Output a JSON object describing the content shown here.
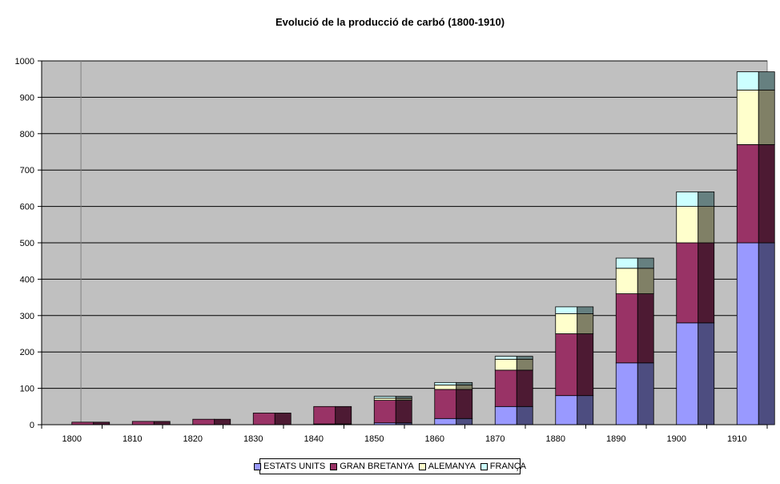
{
  "chart_data": {
    "type": "bar",
    "stacked": true,
    "style": "3d-stacked-columns",
    "title": "Evolució de la producció de carbó (1800-1910)",
    "xlabel": "",
    "ylabel": "",
    "ylim": [
      0,
      1000
    ],
    "yticks": [
      0,
      100,
      200,
      300,
      400,
      500,
      600,
      700,
      800,
      900,
      1000
    ],
    "grid": "horizontal",
    "legend_position": "bottom",
    "plot_background": "#c0c0c0",
    "categories": [
      "1800",
      "1810",
      "1820",
      "1830",
      "1840",
      "1850",
      "1860",
      "1870",
      "1880",
      "1890",
      "1900",
      "1910"
    ],
    "series": [
      {
        "name": "ESTATS UNITS",
        "color": "#9999ff",
        "side_color": "#4d4d80",
        "values": [
          0,
          0,
          0,
          0,
          2,
          5,
          17,
          50,
          80,
          170,
          280,
          500
        ]
      },
      {
        "name": "GRAN BRETANYA",
        "color": "#993366",
        "side_color": "#4d1a33",
        "values": [
          7,
          9,
          15,
          32,
          48,
          62,
          80,
          100,
          170,
          190,
          220,
          270
        ]
      },
      {
        "name": "ALEMANYA",
        "color": "#ffffcc",
        "side_color": "#808066",
        "values": [
          0,
          0,
          0,
          0,
          0,
          6,
          12,
          30,
          55,
          70,
          100,
          150
        ]
      },
      {
        "name": "FRANÇA",
        "color": "#ccffff",
        "side_color": "#668080",
        "values": [
          0,
          0,
          0,
          0,
          0,
          5,
          7,
          8,
          19,
          28,
          40,
          50
        ]
      }
    ]
  }
}
